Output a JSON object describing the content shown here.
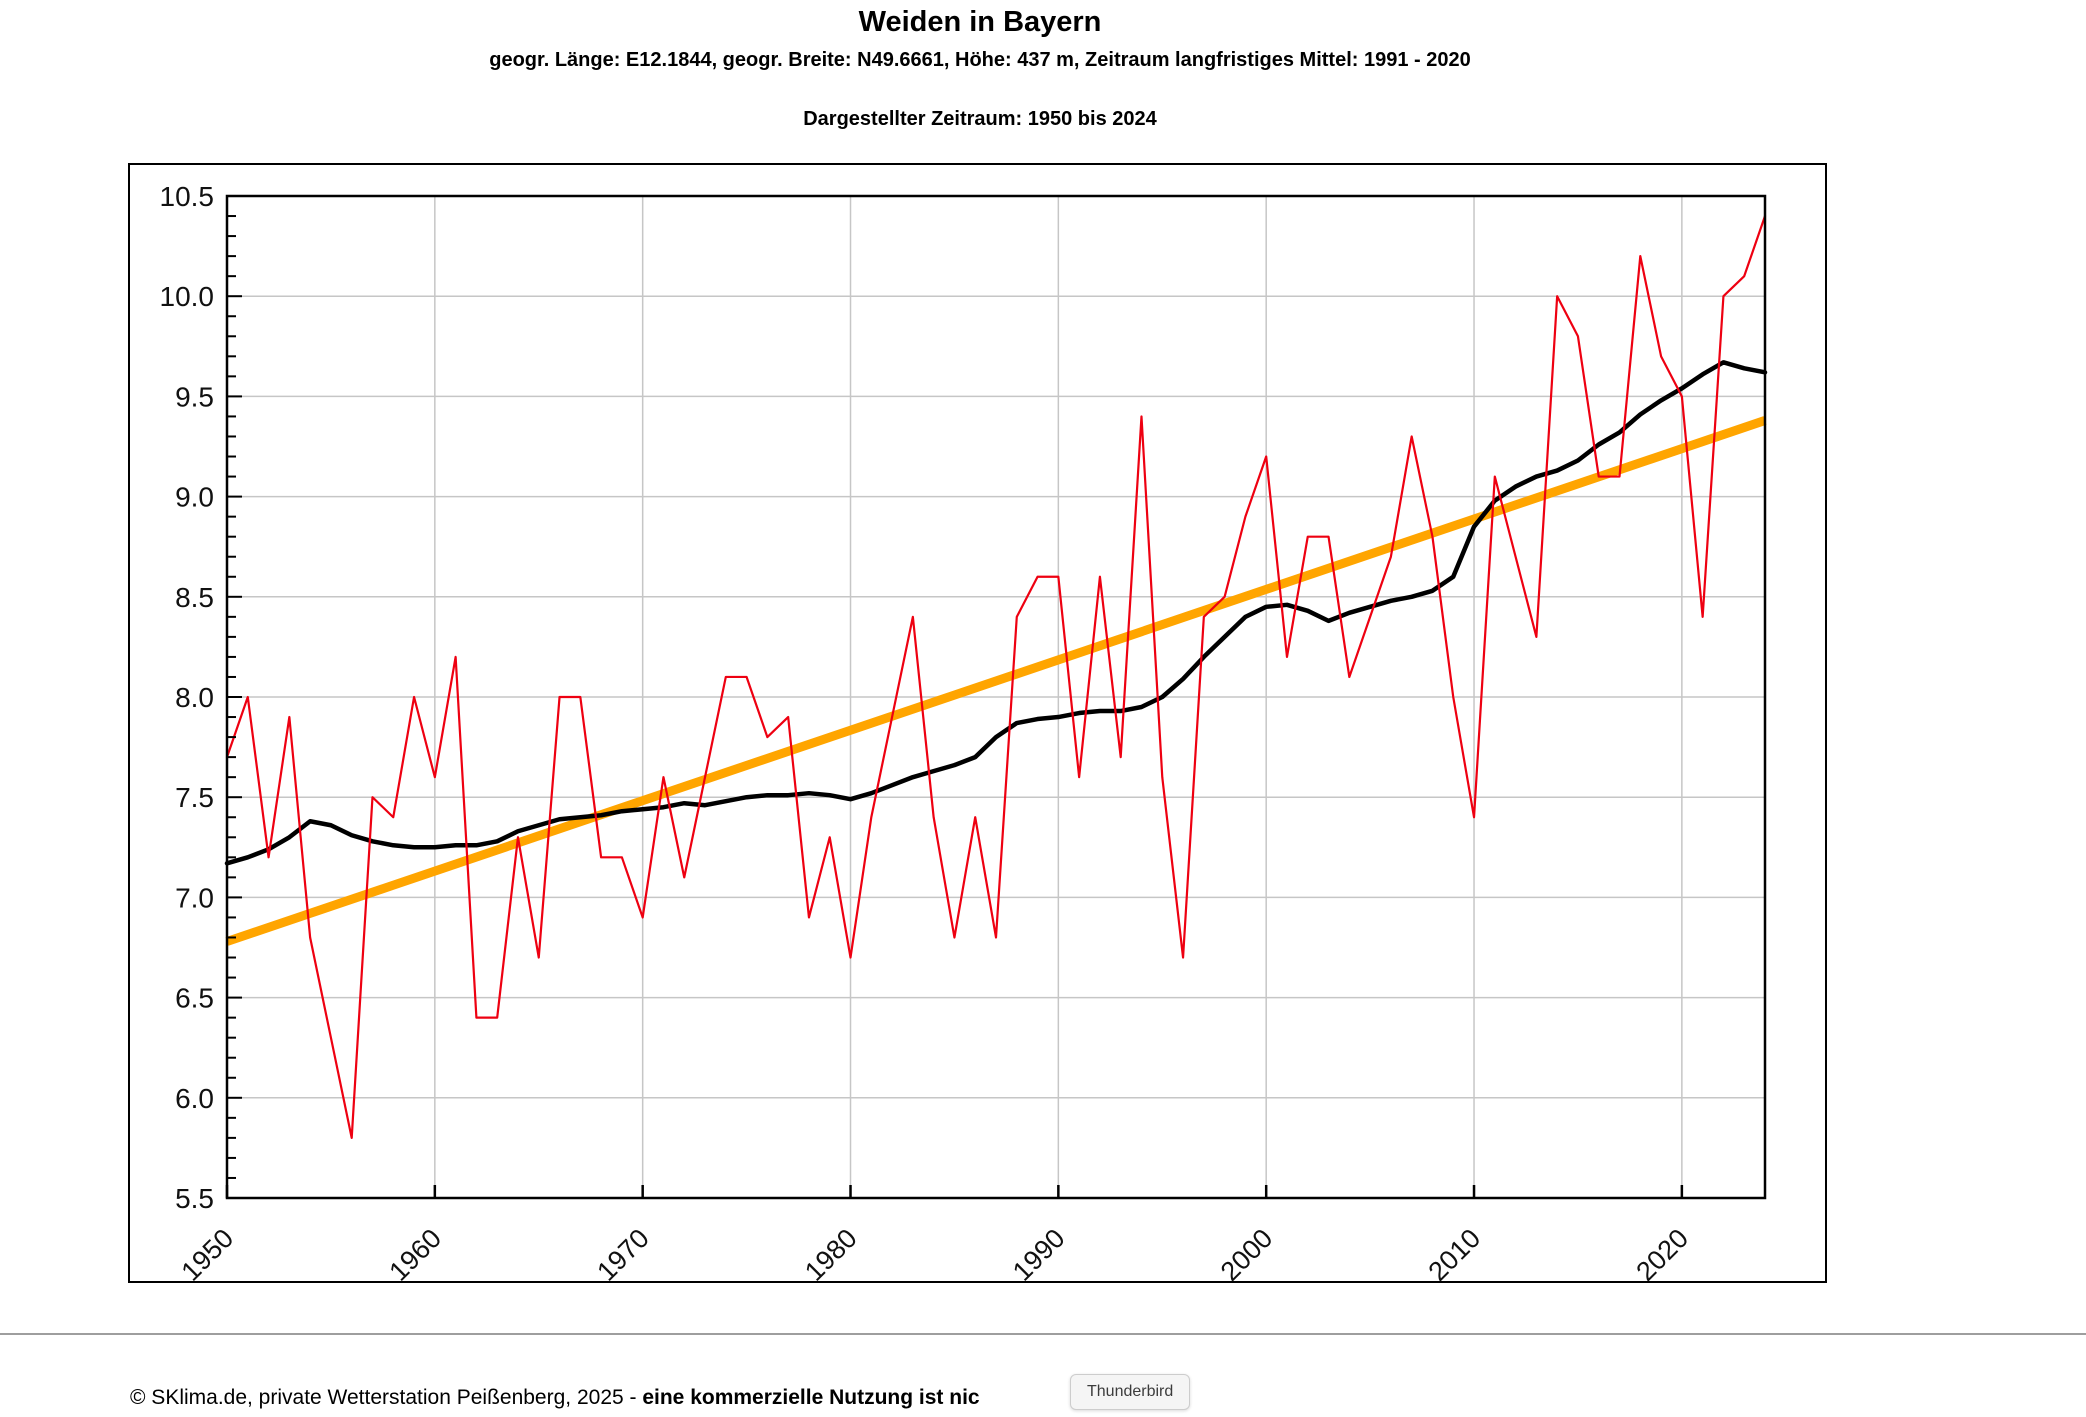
{
  "header": {
    "title": "Weiden in Bayern",
    "subtitle": "geogr. Länge: E12.1844, geogr. Breite: N49.6661, Höhe: 437 m, Zeitraum langfristiges Mittel: 1991 - 2020",
    "period_line": "Dargestellter Zeitraum: 1950 bis 2024"
  },
  "chart_data": {
    "type": "line",
    "title": "Weiden in Bayern",
    "xlabel": "",
    "ylabel": "",
    "xlim": [
      1950,
      2024
    ],
    "ylim": [
      5.5,
      10.5
    ],
    "grid": true,
    "legend_position": "none",
    "x_tick_years": [
      1950,
      1960,
      1970,
      1980,
      1990,
      2000,
      2010,
      2020
    ],
    "x_tick_labels": [
      "1950",
      "1960",
      "1970",
      "1980",
      "1990",
      "2000",
      "2010",
      "2020"
    ],
    "y_tick_values": [
      10.5,
      10.0,
      9.5,
      9.0,
      8.5,
      8.0,
      7.5,
      7.0,
      6.5,
      6.0,
      5.5
    ],
    "y_tick_labels": [
      "10.5",
      "10.0",
      "9.5",
      "9.0",
      "8.5",
      "8.0",
      "7.5",
      "7.0",
      "6.5",
      "6.0",
      "5.5"
    ],
    "y_minor_step": 0.1,
    "x": [
      1950,
      1951,
      1952,
      1953,
      1954,
      1955,
      1956,
      1957,
      1958,
      1959,
      1960,
      1961,
      1962,
      1963,
      1964,
      1965,
      1966,
      1967,
      1968,
      1969,
      1970,
      1971,
      1972,
      1973,
      1974,
      1975,
      1976,
      1977,
      1978,
      1979,
      1980,
      1981,
      1982,
      1983,
      1984,
      1985,
      1986,
      1987,
      1988,
      1989,
      1990,
      1991,
      1992,
      1993,
      1994,
      1995,
      1996,
      1997,
      1998,
      1999,
      2000,
      2001,
      2002,
      2003,
      2004,
      2005,
      2006,
      2007,
      2008,
      2009,
      2010,
      2011,
      2012,
      2013,
      2014,
      2015,
      2016,
      2017,
      2018,
      2019,
      2020,
      2021,
      2022,
      2023,
      2024
    ],
    "series": [
      {
        "name": "annual-mean-temperature",
        "color": "#ee0011",
        "width": 2.2,
        "values": [
          7.7,
          8.0,
          7.2,
          7.9,
          6.8,
          6.3,
          5.8,
          7.5,
          7.4,
          8.0,
          7.6,
          8.2,
          6.4,
          6.4,
          7.3,
          6.7,
          8.0,
          8.0,
          7.2,
          7.2,
          6.9,
          7.6,
          7.1,
          7.6,
          8.1,
          8.1,
          7.8,
          7.9,
          6.9,
          7.3,
          6.7,
          7.4,
          7.9,
          8.4,
          7.4,
          6.8,
          7.4,
          6.8,
          8.4,
          8.6,
          8.6,
          7.6,
          8.6,
          7.7,
          9.4,
          7.6,
          6.7,
          8.4,
          8.5,
          8.9,
          9.2,
          8.2,
          8.8,
          8.8,
          8.1,
          8.4,
          8.7,
          9.3,
          8.8,
          8.0,
          7.4,
          9.1,
          8.7,
          8.3,
          10.0,
          9.8,
          9.1,
          9.1,
          10.2,
          9.7,
          9.5,
          8.4,
          10.0,
          10.1,
          10.4
        ]
      },
      {
        "name": "smoothed-mean",
        "color": "#000000",
        "width": 4.5,
        "values": [
          7.17,
          7.2,
          7.24,
          7.3,
          7.38,
          7.36,
          7.31,
          7.28,
          7.26,
          7.25,
          7.25,
          7.26,
          7.26,
          7.28,
          7.33,
          7.36,
          7.39,
          7.4,
          7.41,
          7.43,
          7.44,
          7.45,
          7.47,
          7.46,
          7.48,
          7.5,
          7.51,
          7.51,
          7.52,
          7.51,
          7.49,
          7.52,
          7.56,
          7.6,
          7.63,
          7.66,
          7.7,
          7.8,
          7.87,
          7.89,
          7.9,
          7.92,
          7.93,
          7.93,
          7.95,
          8.0,
          8.09,
          8.2,
          8.3,
          8.4,
          8.45,
          8.46,
          8.43,
          8.38,
          8.42,
          8.45,
          8.48,
          8.5,
          8.53,
          8.6,
          8.85,
          8.98,
          9.05,
          9.1,
          9.13,
          9.18,
          9.26,
          9.32,
          9.41,
          9.48,
          9.54,
          9.61,
          9.67,
          9.64,
          9.62
        ]
      }
    ],
    "trend": {
      "name": "linear-trend",
      "color": "#ffa500",
      "width": 9,
      "start_year": 1950,
      "start_value": 6.78,
      "end_year": 2024,
      "end_value": 9.38
    },
    "colors": {
      "grid": "#c6c6c6",
      "frame": "#000000",
      "tick": "#000000",
      "tick_label": "#111111"
    }
  },
  "footer": {
    "copyright_normal": "© SKlima.de, private Wetterstation Peißenberg, 2025 - ",
    "copyright_bold": "eine kommerzielle Nutzung ist nic",
    "tooltip": "Thunderbird"
  }
}
